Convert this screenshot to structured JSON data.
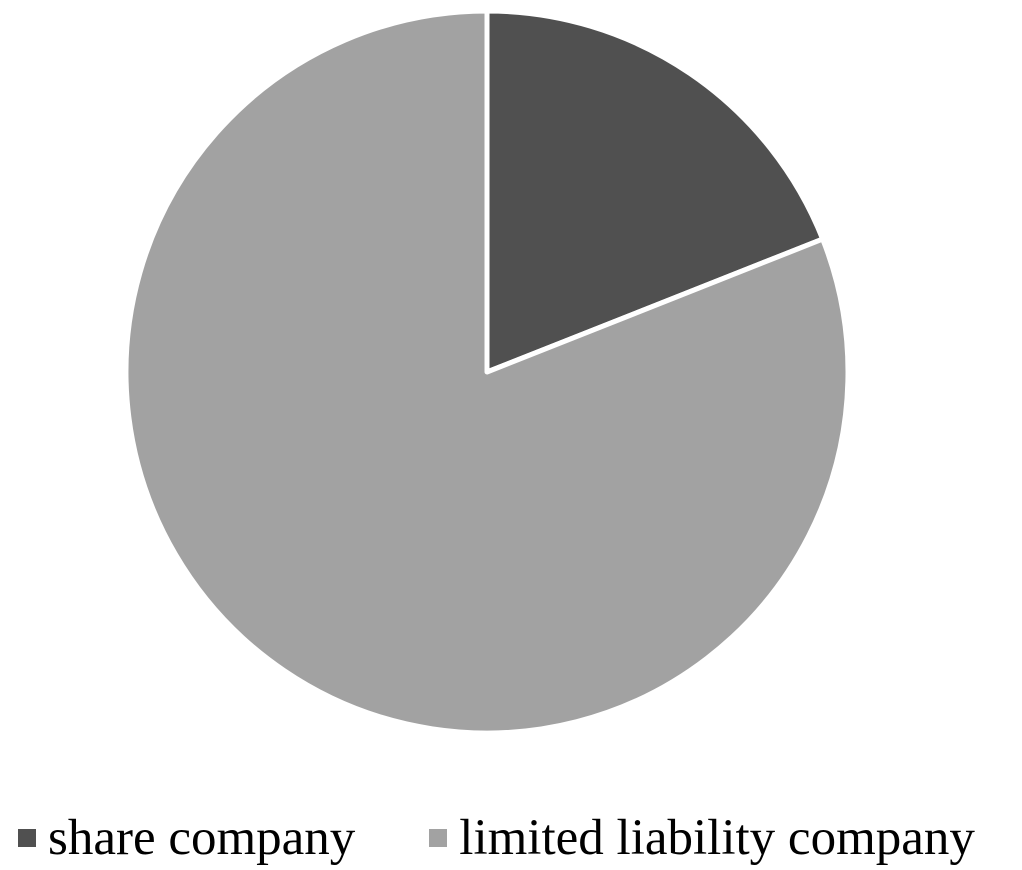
{
  "chart_data": {
    "type": "pie",
    "title": "",
    "start_angle": "12 o'clock",
    "direction": "clockwise",
    "slice_border_color": "#ffffff",
    "legend_position": "bottom",
    "series": [
      {
        "name": "share company",
        "value": 19,
        "color": "#505050"
      },
      {
        "name": "limited liability company",
        "value": 81,
        "color": "#a2a2a2"
      }
    ]
  }
}
